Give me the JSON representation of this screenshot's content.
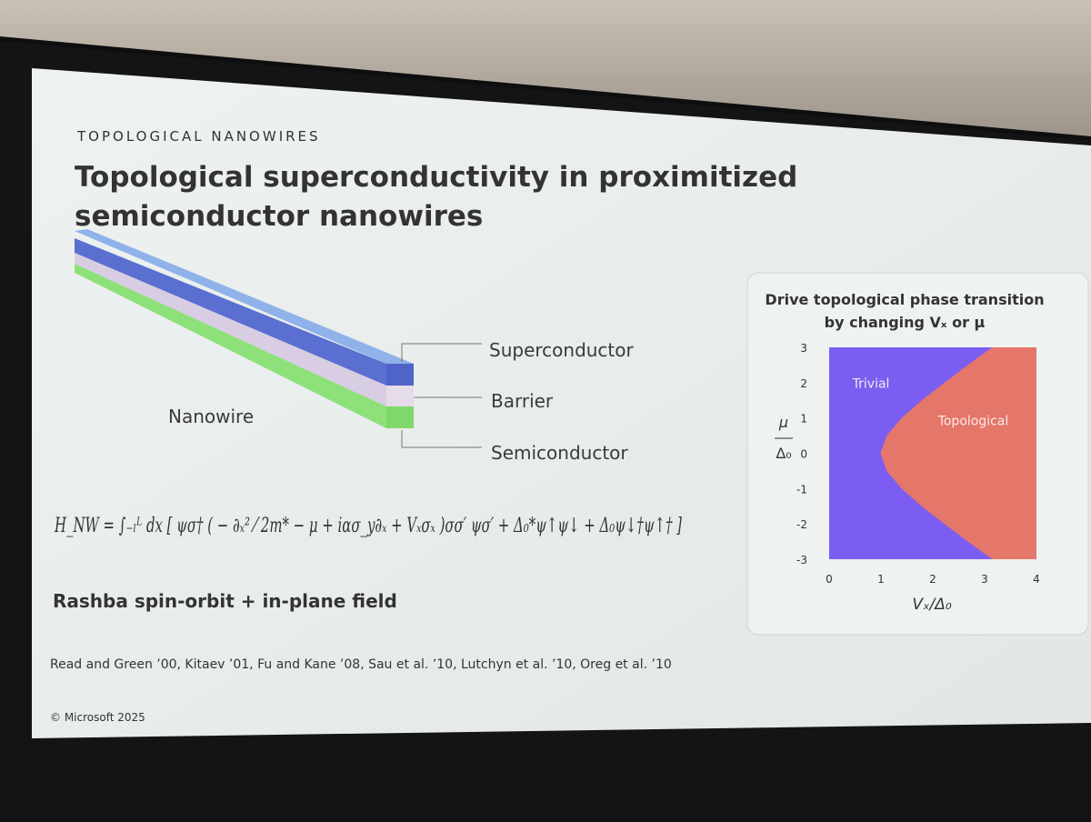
{
  "slide": {
    "section": "TOPOLOGICAL NANOWIRES",
    "title": [
      "Topological superconductivity in proximitized",
      "semiconductor nanowires"
    ],
    "wire_labels": {
      "superconductor": "Superconductor",
      "barrier": "Barrier",
      "semiconductor": "Semiconductor",
      "nanowire": "Nanowire"
    },
    "equation": "H_NW = ∫₋ₗᴸ dx [ ψσ† ( − ∂ₓ² ⁄ 2m* − μ + iασ_y∂ₓ + Vₓσₓ )σσ′ ψσ′ + Δ₀*ψ↑ψ↓ + Δ₀ψ↓†ψ↑† ]",
    "subtitle": "Rashba  spin-orbit  +  in-plane field",
    "references": "Read and Green ’00,  Kitaev ’01,  Fu and Kane ’08,  Sau et al. ’10,  Lutchyn et al. ’10,  Oreg et al. ’10",
    "copyright": "© Microsoft 2025"
  },
  "chart_data": {
    "type": "phase-diagram",
    "title": [
      "Drive topological phase transition",
      "by changing Vₓ or μ"
    ],
    "xlabel": "Vₓ/Δ₀",
    "ylabel": {
      "numerator": "μ",
      "denominator": "Δ₀"
    },
    "regions": [
      {
        "name": "Trivial",
        "color": "#7b5df2"
      },
      {
        "name": "Topological",
        "color": "#e5766a"
      }
    ],
    "boundary": {
      "x": [
        3.16,
        2.69,
        2.24,
        1.8,
        1.41,
        1.12,
        1,
        1.12,
        1.41,
        1.8,
        2.24,
        2.69,
        3.16
      ],
      "y": [
        -3,
        -2.5,
        -2,
        -1.5,
        -1,
        -0.5,
        0,
        0.5,
        1,
        1.5,
        2,
        2.5,
        3
      ]
    },
    "xlim": [
      0,
      4
    ],
    "ylim": [
      -3,
      3
    ],
    "xticks": [
      0,
      1,
      2,
      3,
      4
    ],
    "yticks": [
      -3,
      -2,
      -1,
      0,
      1,
      2,
      3
    ]
  }
}
